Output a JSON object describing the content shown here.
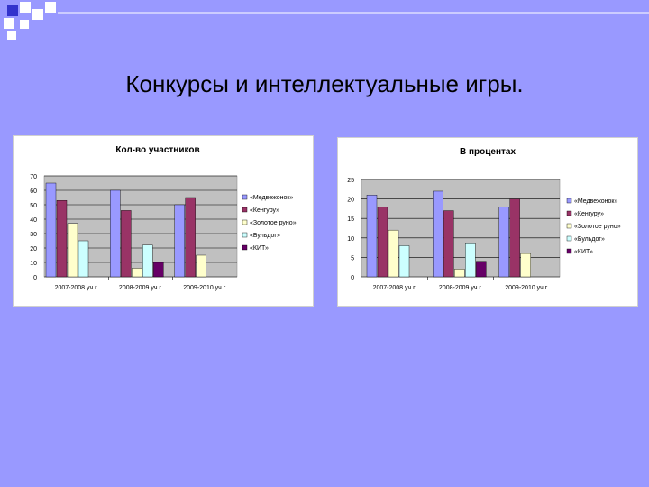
{
  "slide": {
    "title": "Конкурсы и интеллектуальные игры."
  },
  "colors": {
    "background": "#9999ff",
    "deco_square_fill": "#ffffff",
    "deco_square_dark": "#3333cc",
    "plot_area": "#c0c0c0"
  },
  "chart_data": [
    {
      "type": "bar",
      "title": "Кол-во участников",
      "xlabel": "",
      "ylabel": "",
      "categories": [
        "2007-2008 уч.г.",
        "2008-2009 уч.г.",
        "2009-2010 уч.г."
      ],
      "ylim": [
        0,
        70
      ],
      "yticks": [
        0,
        10,
        20,
        30,
        40,
        50,
        60,
        70
      ],
      "grid": true,
      "legend_position": "right",
      "series": [
        {
          "name": "«Медвежонок»",
          "color": "#9999ff",
          "values": [
            65,
            60,
            50
          ]
        },
        {
          "name": "«Кенгуру»",
          "color": "#993366",
          "values": [
            53,
            46,
            55
          ]
        },
        {
          "name": "«Золотое руно»",
          "color": "#ffffcc",
          "values": [
            37,
            6,
            15
          ]
        },
        {
          "name": "«Бульдог»",
          "color": "#ccffff",
          "values": [
            25,
            22,
            0
          ]
        },
        {
          "name": "«КИТ»",
          "color": "#660066",
          "values": [
            0,
            10,
            0
          ]
        }
      ]
    },
    {
      "type": "bar",
      "title": "В процентах",
      "xlabel": "",
      "ylabel": "",
      "categories": [
        "2007-2008 уч.г.",
        "2008-2009 уч.г.",
        "2009-2010 уч.г."
      ],
      "ylim": [
        0,
        25
      ],
      "yticks": [
        0,
        5,
        10,
        15,
        20,
        25
      ],
      "grid": true,
      "legend_position": "right",
      "series": [
        {
          "name": "«Медвежонок»",
          "color": "#9999ff",
          "values": [
            21,
            22,
            18
          ]
        },
        {
          "name": "«Кенгуру»",
          "color": "#993366",
          "values": [
            18,
            17,
            20
          ]
        },
        {
          "name": "«Золотое руно»",
          "color": "#ffffcc",
          "values": [
            12,
            2,
            6
          ]
        },
        {
          "name": "«Бульдог»",
          "color": "#ccffff",
          "values": [
            8,
            8.5,
            0
          ]
        },
        {
          "name": "«КИТ»",
          "color": "#660066",
          "values": [
            0,
            4,
            0
          ]
        }
      ]
    }
  ]
}
